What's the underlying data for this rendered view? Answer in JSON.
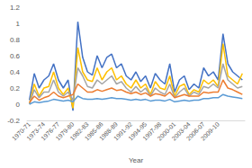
{
  "chart_data": {
    "type": "line",
    "x_label": "Year",
    "categories": [
      "1970-71",
      null,
      null,
      "1973-74",
      null,
      null,
      "1976-77",
      null,
      null,
      "1979-80",
      null,
      null,
      "1982-83",
      null,
      null,
      "1985-86",
      null,
      null,
      "1988-89",
      null,
      null,
      "1991-92",
      null,
      null,
      "1994-95",
      null,
      null,
      "1997-98",
      null,
      null,
      "2000-01",
      null,
      null,
      "2003-04",
      null,
      null,
      "2006-07",
      null,
      null,
      "2009-10",
      null,
      null,
      null,
      null,
      null
    ],
    "series": [
      {
        "color": "#4472c4",
        "values": [
          0.05,
          0.38,
          0.2,
          0.3,
          0.35,
          0.5,
          0.3,
          0.2,
          0.3,
          -0.08,
          1.02,
          0.58,
          0.4,
          0.36,
          0.6,
          0.45,
          0.58,
          0.62,
          0.45,
          0.5,
          0.35,
          0.3,
          0.4,
          0.28,
          0.35,
          0.2,
          0.38,
          0.3,
          0.25,
          0.5,
          0.15,
          0.3,
          0.35,
          0.18,
          0.25,
          0.2,
          0.45,
          0.35,
          0.4,
          0.3,
          0.87,
          0.5,
          0.4,
          0.35,
          0.3
        ]
      },
      {
        "color": "#ffc000",
        "values": [
          0,
          0.25,
          0.1,
          0.2,
          0.22,
          0.4,
          0.2,
          0.12,
          0.2,
          -0.05,
          0.7,
          0.4,
          0.3,
          0.28,
          0.45,
          0.3,
          0.4,
          0.45,
          0.3,
          0.35,
          0.25,
          0.2,
          0.3,
          0.2,
          0.25,
          0.12,
          0.28,
          0.2,
          0.18,
          0.35,
          0.1,
          0.22,
          0.25,
          0.12,
          0.18,
          0.15,
          0.3,
          0.25,
          0.3,
          0.22,
          0.75,
          0.35,
          0.3,
          0.25,
          0.38
        ]
      },
      {
        "color": "#a5a5a5",
        "values": [
          0,
          0.18,
          0.08,
          0.15,
          0.15,
          0.3,
          0.15,
          0.1,
          0.15,
          0.05,
          0.45,
          0.35,
          0.22,
          0.2,
          0.3,
          0.25,
          0.3,
          0.35,
          0.25,
          0.28,
          0.2,
          0.15,
          0.22,
          0.15,
          0.2,
          0.1,
          0.2,
          0.15,
          0.12,
          0.25,
          0.08,
          0.15,
          0.2,
          0.1,
          0.15,
          0.12,
          0.22,
          0.2,
          0.25,
          0.2,
          0.5,
          0.3,
          0.25,
          0.2,
          0.22
        ]
      },
      {
        "color": "#ed7d31",
        "values": [
          0.02,
          0.1,
          0.05,
          0.08,
          0.1,
          0.15,
          0.1,
          0.08,
          0.1,
          0.12,
          0.25,
          0.2,
          0.15,
          0.15,
          0.18,
          0.16,
          0.18,
          0.2,
          0.17,
          0.18,
          0.15,
          0.13,
          0.15,
          0.12,
          0.14,
          0.1,
          0.13,
          0.12,
          0.1,
          0.15,
          0.08,
          0.1,
          0.12,
          0.1,
          0.1,
          0.1,
          0.15,
          0.14,
          0.15,
          0.15,
          0.3,
          0.2,
          0.18,
          0.15,
          0.12
        ]
      },
      {
        "color": "#5b9bd5",
        "values": [
          0,
          0.03,
          0.02,
          0.03,
          0.04,
          0.06,
          0.05,
          0.04,
          0.05,
          0.03,
          0.1,
          0.07,
          0.06,
          0.06,
          0.07,
          0.06,
          0.07,
          0.08,
          0.07,
          0.07,
          0.06,
          0.05,
          0.06,
          0.05,
          0.06,
          0.04,
          0.05,
          0.05,
          0.04,
          0.06,
          0.03,
          0.04,
          0.05,
          0.04,
          0.05,
          0.05,
          0.07,
          0.07,
          0.08,
          0.08,
          0.12,
          0.1,
          0.09,
          0.08,
          0.07
        ]
      }
    ],
    "ylim": [
      -0.2,
      1.2
    ],
    "yticks": [
      -0.2,
      0,
      0.2,
      0.4,
      0.6,
      0.8,
      1,
      1.2
    ],
    "grid": false
  }
}
